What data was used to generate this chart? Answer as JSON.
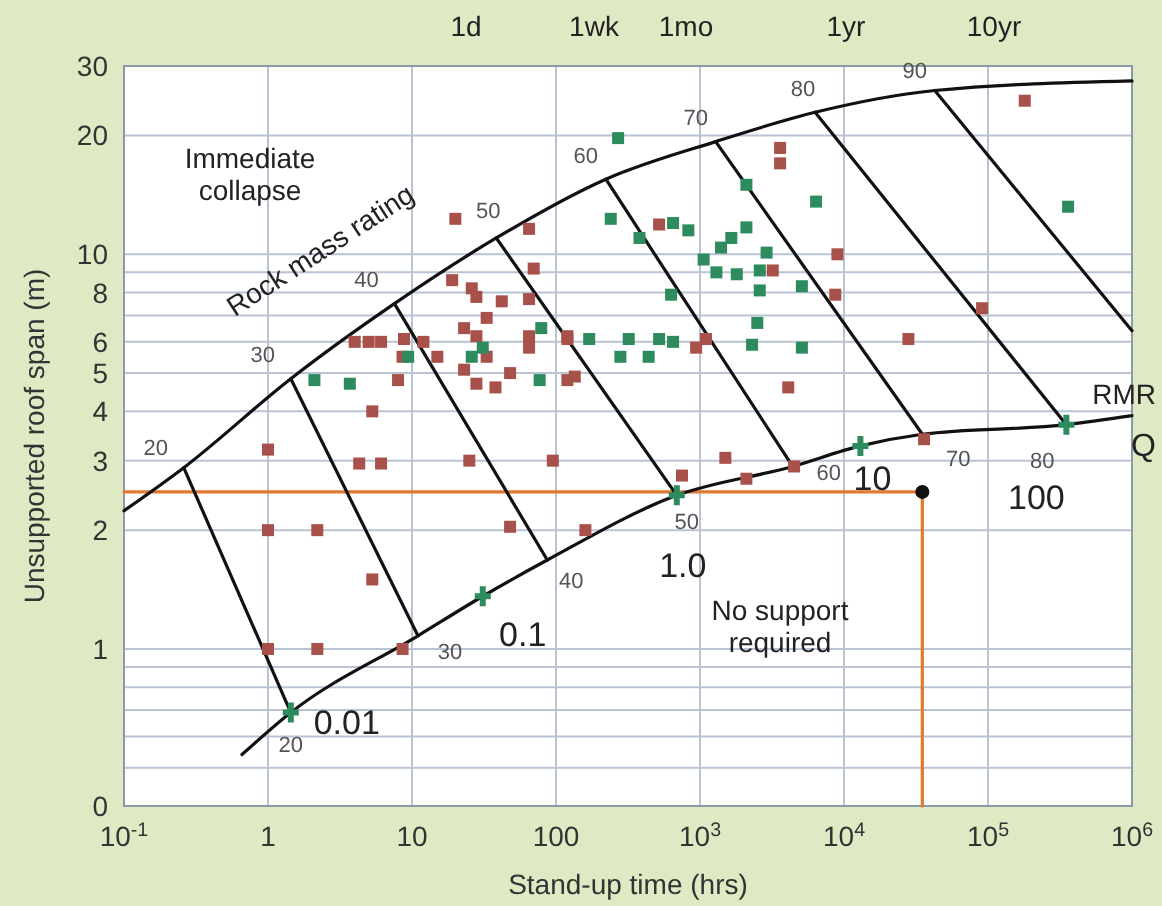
{
  "chart_data": {
    "type": "scatter",
    "xlabel": "Stand-up time (hrs)",
    "ylabel": "Unsupported roof span (m)",
    "log": "xy",
    "grid": true,
    "xlim": [
      0.1,
      1000000
    ],
    "xticks": [
      {
        "value": 0.1,
        "label": "10$^{-1}$"
      },
      1,
      10,
      100,
      {
        "value": 1000,
        "label": "10$^{3}$"
      },
      {
        "value": 10000,
        "label": "10$^{4}$"
      },
      {
        "value": 100000,
        "label": "10$^{5}$"
      },
      {
        "value": 1000000,
        "label": "10$^{6}$"
      }
    ],
    "ylim": [
      0.4,
      30
    ],
    "yticks": [
      {
        "value": 0.4,
        "label": "0"
      },
      {
        "value": 0.5,
        "label": null
      },
      {
        "value": 0.6,
        "label": null
      },
      {
        "value": 0.7,
        "label": null
      },
      {
        "value": 0.8,
        "label": null
      },
      {
        "value": 0.9,
        "label": null
      },
      1,
      2,
      3,
      4,
      5,
      6,
      {
        "value": 7,
        "label": null
      },
      8,
      {
        "value": 9,
        "label": null
      },
      10,
      20,
      30
    ],
    "series": [
      {
        "type": "line",
        "color": "#e07a30",
        "marker": "none",
        "x": [
          0.1,
          35000,
          35000
        ],
        "values": [
          2.5,
          2.5,
          0.4
        ]
      },
      {
        "type": "line",
        "color": "#111111",
        "marker": "none",
        "x": [
          0.1,
          0.26,
          1.44,
          7.55,
          38.5,
          222,
          1285,
          6300,
          42700,
          1000000
        ],
        "values": [
          2.24,
          2.88,
          4.84,
          7.5,
          11,
          15.5,
          19.3,
          22.9,
          26,
          27.5
        ]
      },
      {
        "type": "line",
        "color": "#111111",
        "marker": "none",
        "x": [
          0.66,
          1.44,
          11,
          31,
          87,
          690,
          4400,
          13000,
          35000,
          350000,
          1000000
        ],
        "values": [
          0.54,
          0.69,
          1.08,
          1.36,
          1.68,
          2.45,
          2.9,
          3.27,
          3.5,
          3.7,
          3.9
        ]
      },
      {
        "type": "line",
        "color": "#111111",
        "marker": "none",
        "x": [
          0.26,
          1.44
        ],
        "values": [
          2.88,
          0.69
        ]
      },
      {
        "type": "line",
        "color": "#111111",
        "marker": "none",
        "x": [
          1.44,
          11
        ],
        "values": [
          4.84,
          1.08
        ]
      },
      {
        "type": "line",
        "color": "#111111",
        "marker": "none",
        "x": [
          7.55,
          87
        ],
        "values": [
          7.5,
          1.68
        ]
      },
      {
        "type": "line",
        "color": "#111111",
        "marker": "none",
        "x": [
          38.5,
          690
        ],
        "values": [
          11,
          2.45
        ]
      },
      {
        "type": "line",
        "color": "#111111",
        "marker": "none",
        "x": [
          222,
          4400
        ],
        "values": [
          15.5,
          2.9
        ]
      },
      {
        "type": "line",
        "color": "#111111",
        "marker": "none",
        "x": [
          1285,
          35000
        ],
        "values": [
          19.3,
          3.5
        ]
      },
      {
        "type": "line",
        "color": "#111111",
        "marker": "none",
        "x": [
          6300,
          350000
        ],
        "values": [
          22.9,
          3.7
        ]
      },
      {
        "type": "line",
        "color": "#111111",
        "marker": "none",
        "x": [
          42700,
          1000000
        ],
        "values": [
          26,
          6.4
        ]
      },
      {
        "type": "scatter",
        "color": "#a8514a",
        "marker": "square",
        "x": [
          20,
          65,
          19,
          26,
          28,
          42,
          65,
          70,
          33,
          23,
          28,
          4.0,
          5.0,
          6.1,
          8.8,
          12,
          15,
          8.6,
          8.0,
          23,
          33,
          28,
          38,
          48,
          65,
          65,
          120,
          120,
          5.3,
          1.0,
          3600,
          3600,
          180000,
          520,
          9000,
          3200,
          8700,
          91000,
          120,
          940,
          1100,
          28000,
          135,
          4100,
          1500,
          36000,
          4.3,
          6.1,
          25,
          95,
          1.0,
          2.2,
          48,
          160,
          5.3,
          1.0,
          2.2,
          8.6,
          750,
          2100,
          4500
        ],
        "values": [
          12.3,
          11.6,
          8.6,
          8.2,
          7.8,
          7.6,
          7.7,
          9.2,
          6.9,
          6.5,
          6.2,
          6.0,
          6.0,
          6.0,
          6.1,
          6.0,
          5.5,
          5.5,
          4.8,
          5.1,
          5.5,
          4.7,
          4.6,
          5.0,
          6.2,
          5.8,
          6.2,
          4.8,
          4.0,
          3.2,
          18.6,
          17,
          24.5,
          11.9,
          10,
          9.1,
          7.9,
          7.3,
          6.1,
          5.8,
          6.1,
          6.1,
          4.9,
          4.6,
          3.05,
          3.4,
          2.95,
          2.95,
          3.0,
          3.0,
          2.0,
          2.0,
          2.04,
          2.0,
          1.5,
          1.0,
          1.0,
          1.0,
          2.75,
          2.7,
          2.9
        ]
      },
      {
        "type": "scatter",
        "color": "#2e8b5e",
        "marker": "square",
        "x": [
          9.4,
          2.1,
          3.7,
          26,
          79,
          77,
          31,
          270,
          2100,
          6400,
          360000,
          240,
          650,
          830,
          380,
          1650,
          2100,
          1400,
          1060,
          2900,
          1300,
          1800,
          2600,
          2600,
          5100,
          630,
          2500,
          170,
          320,
          520,
          650,
          2300,
          5100,
          280,
          440
        ],
        "values": [
          5.5,
          4.8,
          4.7,
          5.5,
          6.5,
          4.8,
          5.8,
          19.7,
          15,
          13.6,
          13.2,
          12.3,
          12,
          11.5,
          11,
          11,
          11.7,
          10.4,
          9.7,
          10.1,
          9.0,
          8.9,
          9.1,
          8.1,
          8.3,
          7.9,
          6.7,
          6.1,
          6.1,
          6.1,
          6.0,
          5.9,
          5.8,
          5.5,
          5.5
        ]
      },
      {
        "type": "scatter",
        "color": "#2e8b5e",
        "marker": "cross",
        "x": [
          1.44,
          31,
          690,
          13000,
          350000
        ],
        "values": [
          0.69,
          1.36,
          2.45,
          3.27,
          3.7
        ]
      },
      {
        "type": "scatter",
        "color": "#111111",
        "marker": "circle",
        "x": [
          35000
        ],
        "values": [
          2.5
        ]
      }
    ],
    "annotations": [
      "Immediate collapse",
      "Rock mass rating",
      "No support required",
      "RMR",
      "Q",
      "1d",
      "1wk",
      "1mo",
      "1yr",
      "10yr",
      {
        "text": "20",
        "x": 0.26,
        "y": 2.88
      },
      {
        "text": "30",
        "x": 1.44,
        "y": 4.84
      },
      {
        "text": "40",
        "x": 7.55,
        "y": 7.5
      },
      {
        "text": "50",
        "x": 38.5,
        "y": 11
      },
      {
        "text": "60",
        "x": 222,
        "y": 15.5
      },
      {
        "text": "70",
        "x": 1285,
        "y": 19.3
      },
      {
        "text": "80",
        "x": 6300,
        "y": 22.9
      },
      {
        "text": "90",
        "x": 42700,
        "y": 26
      },
      {
        "text": "20",
        "x": 1.44,
        "y": 0.69
      },
      {
        "text": "30",
        "x": 11,
        "y": 1.08
      },
      {
        "text": "40",
        "x": 87,
        "y": 1.68
      },
      {
        "text": "50",
        "x": 690,
        "y": 2.45
      },
      {
        "text": "60",
        "x": 4400,
        "y": 2.9
      },
      {
        "text": "70",
        "x": 35000,
        "y": 3.5
      },
      {
        "text": "80",
        "x": 350000,
        "y": 3.7
      },
      {
        "text": "0.01",
        "x": 1.44,
        "y": 0.69
      },
      {
        "text": "0.1",
        "x": 31,
        "y": 1.36
      },
      {
        "text": "1.0",
        "x": 690,
        "y": 2.45
      },
      {
        "text": "10",
        "x": 13000,
        "y": 3.27
      },
      {
        "text": "100",
        "x": 350000,
        "y": 3.7
      }
    ]
  }
}
